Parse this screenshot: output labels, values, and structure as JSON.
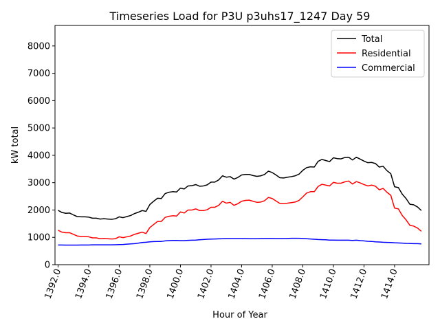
{
  "chart_data": {
    "type": "line",
    "title": "Timeseries Load for P3U p3uhs17_1247  Day 59",
    "xlabel": "Hour of Year",
    "ylabel": "kW total",
    "xlim": [
      1391.8,
      1416.25
    ],
    "ylim": [
      0,
      8750
    ],
    "x_ticks": [
      1392,
      1394,
      1396,
      1398,
      1400,
      1402,
      1404,
      1406,
      1408,
      1410,
      1412,
      1414
    ],
    "x_tick_labels": [
      "1392.0",
      "1394.0",
      "1396.0",
      "1398.0",
      "1400.0",
      "1402.0",
      "1404.0",
      "1406.0",
      "1408.0",
      "1410.0",
      "1412.0",
      "1414.0"
    ],
    "y_ticks": [
      0,
      1000,
      2000,
      3000,
      4000,
      5000,
      6000,
      7000,
      8000
    ],
    "y_tick_labels": [
      "0",
      "1000",
      "2000",
      "3000",
      "4000",
      "5000",
      "6000",
      "7000",
      "8000"
    ],
    "grid": false,
    "legend_position": "top-right",
    "x_start": 1392.0,
    "x_step": 0.25,
    "series": [
      {
        "name": "Total",
        "color": "#000000",
        "values": [
          1990,
          1910,
          1880,
          1890,
          1820,
          1760,
          1750,
          1750,
          1740,
          1700,
          1700,
          1670,
          1680,
          1670,
          1660,
          1680,
          1750,
          1720,
          1760,
          1800,
          1870,
          1920,
          1980,
          1950,
          2200,
          2320,
          2430,
          2420,
          2600,
          2650,
          2670,
          2660,
          2800,
          2770,
          2880,
          2890,
          2930,
          2870,
          2880,
          2920,
          3020,
          3020,
          3100,
          3250,
          3200,
          3220,
          3130,
          3190,
          3280,
          3300,
          3300,
          3260,
          3230,
          3250,
          3300,
          3420,
          3370,
          3280,
          3180,
          3170,
          3200,
          3220,
          3250,
          3310,
          3450,
          3550,
          3580,
          3570,
          3780,
          3850,
          3810,
          3770,
          3910,
          3880,
          3870,
          3920,
          3930,
          3830,
          3930,
          3860,
          3790,
          3730,
          3740,
          3700,
          3570,
          3600,
          3440,
          3330,
          2850,
          2820,
          2580,
          2420,
          2210,
          2190,
          2110,
          1980
        ]
      },
      {
        "name": "Residential",
        "color": "#ff0000",
        "values": [
          1260,
          1190,
          1170,
          1170,
          1110,
          1050,
          1030,
          1030,
          1020,
          980,
          980,
          950,
          960,
          950,
          940,
          950,
          1020,
          990,
          1020,
          1050,
          1110,
          1150,
          1190,
          1140,
          1360,
          1470,
          1580,
          1580,
          1730,
          1770,
          1790,
          1780,
          1930,
          1890,
          2000,
          2000,
          2040,
          1980,
          1980,
          2010,
          2100,
          2100,
          2170,
          2320,
          2250,
          2280,
          2170,
          2230,
          2320,
          2350,
          2360,
          2320,
          2280,
          2290,
          2340,
          2460,
          2420,
          2330,
          2240,
          2230,
          2250,
          2270,
          2290,
          2350,
          2480,
          2620,
          2670,
          2670,
          2860,
          2940,
          2910,
          2880,
          3010,
          2980,
          2980,
          3030,
          3060,
          2950,
          3040,
          2990,
          2930,
          2880,
          2910,
          2870,
          2740,
          2790,
          2650,
          2540,
          2070,
          2040,
          1800,
          1640,
          1440,
          1410,
          1340,
          1220
        ]
      },
      {
        "name": "Commercial",
        "color": "#0000ff",
        "values": [
          720,
          720,
          715,
          715,
          715,
          715,
          720,
          720,
          720,
          725,
          725,
          725,
          725,
          725,
          725,
          730,
          735,
          740,
          750,
          760,
          770,
          790,
          810,
          820,
          835,
          845,
          850,
          850,
          870,
          880,
          885,
          885,
          880,
          880,
          890,
          895,
          900,
          910,
          920,
          930,
          935,
          940,
          945,
          950,
          955,
          955,
          955,
          955,
          955,
          955,
          950,
          950,
          950,
          955,
          960,
          960,
          960,
          955,
          955,
          955,
          960,
          965,
          965,
          965,
          960,
          950,
          940,
          930,
          920,
          915,
          910,
          900,
          900,
          895,
          895,
          895,
          895,
          885,
          895,
          880,
          870,
          855,
          850,
          835,
          830,
          820,
          815,
          810,
          800,
          795,
          790,
          780,
          775,
          770,
          770,
          760
        ]
      }
    ]
  }
}
